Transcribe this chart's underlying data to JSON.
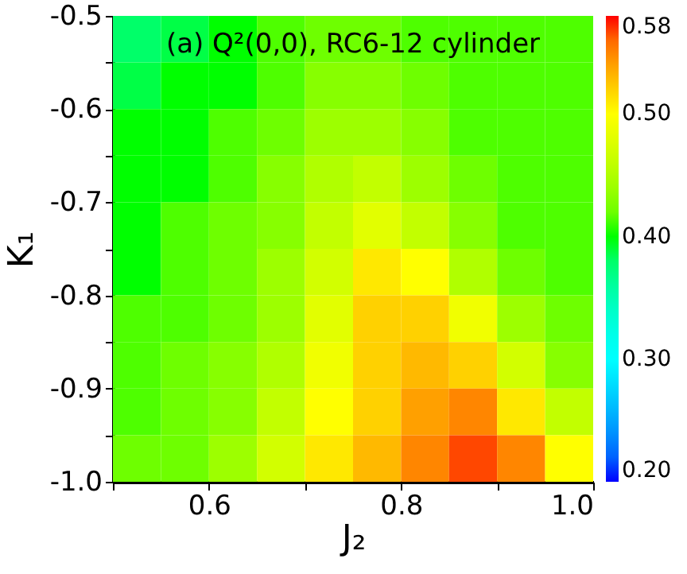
{
  "chart_data": {
    "type": "heatmap",
    "title": "(a) Q²(0,0), RC6-12 cylinder",
    "xlabel": "J₂",
    "ylabel": "K₁",
    "x": [
      0.525,
      0.575,
      0.625,
      0.675,
      0.725,
      0.775,
      0.825,
      0.875,
      0.925,
      0.975
    ],
    "y": [
      -0.525,
      -0.575,
      -0.625,
      -0.675,
      -0.725,
      -0.775,
      -0.825,
      -0.875,
      -0.925,
      -0.975
    ],
    "xlim": [
      0.5,
      1.0
    ],
    "xticks": [
      {
        "value": 0.5,
        "label": null
      },
      0.6,
      {
        "value": 0.7,
        "label": null
      },
      0.8,
      {
        "value": 0.9,
        "label": null
      },
      {
        "value": 1.0,
        "label": "1.0"
      }
    ],
    "ylim": [
      -1.0,
      -0.5
    ],
    "yticks": [
      {
        "value": -1.0,
        "label": "-1.0"
      },
      {
        "value": -0.95,
        "label": null
      },
      -0.9,
      {
        "value": -0.85,
        "label": null
      },
      -0.8,
      {
        "value": -0.75,
        "label": null
      },
      -0.7,
      {
        "value": -0.65,
        "label": null
      },
      -0.6,
      {
        "value": -0.55,
        "label": null
      },
      -0.5
    ],
    "cells": [
      [
        0.38,
        0.39,
        0.4,
        0.41,
        0.42,
        0.42,
        0.41,
        0.41,
        0.41,
        0.41
      ],
      [
        0.39,
        0.4,
        0.4,
        0.41,
        0.43,
        0.43,
        0.42,
        0.41,
        0.41,
        0.41
      ],
      [
        0.4,
        0.4,
        0.41,
        0.42,
        0.44,
        0.44,
        0.43,
        0.41,
        0.41,
        0.41
      ],
      [
        0.4,
        0.4,
        0.41,
        0.43,
        0.45,
        0.46,
        0.44,
        0.42,
        0.41,
        0.41
      ],
      [
        0.4,
        0.41,
        0.42,
        0.43,
        0.46,
        0.48,
        0.46,
        0.43,
        0.41,
        0.41
      ],
      [
        0.4,
        0.41,
        0.42,
        0.44,
        0.47,
        0.51,
        0.5,
        0.45,
        0.42,
        0.41
      ],
      [
        0.41,
        0.41,
        0.42,
        0.44,
        0.48,
        0.52,
        0.52,
        0.49,
        0.44,
        0.42
      ],
      [
        0.41,
        0.42,
        0.43,
        0.45,
        0.49,
        0.52,
        0.53,
        0.52,
        0.47,
        0.43
      ],
      [
        0.41,
        0.42,
        0.43,
        0.46,
        0.5,
        0.52,
        0.54,
        0.55,
        0.51,
        0.46
      ],
      [
        0.42,
        0.42,
        0.44,
        0.47,
        0.51,
        0.53,
        0.55,
        0.57,
        0.55,
        0.5
      ]
    ],
    "clim": [
      0.2,
      0.58
    ],
    "cticks": [
      {
        "value": 0.2,
        "label": "0.20"
      },
      {
        "value": 0.3,
        "label": "0.30"
      },
      {
        "value": 0.4,
        "label": "0.40"
      },
      {
        "value": 0.5,
        "label": "0.50"
      },
      {
        "value": 0.58,
        "label": "0.58"
      }
    ],
    "grid": false
  }
}
